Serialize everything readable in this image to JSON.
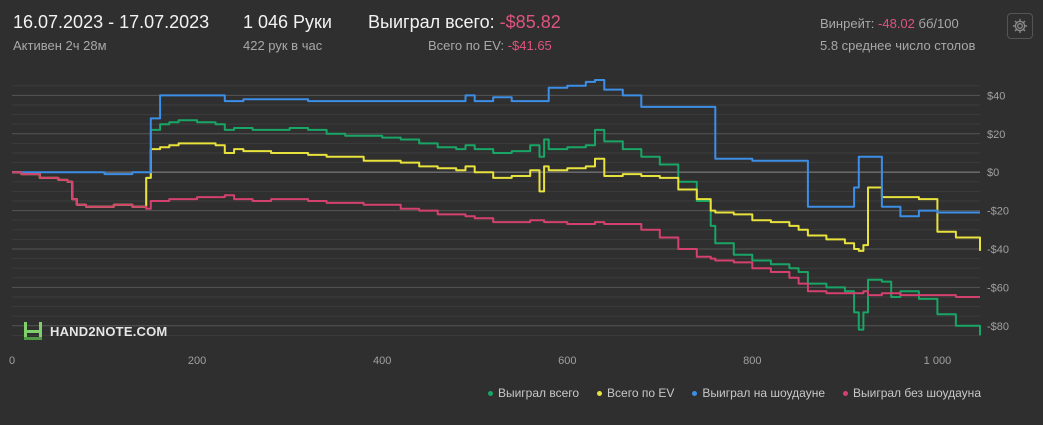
{
  "header": {
    "date_range": "16.07.2023 - 17.07.2023",
    "active_time": "Активен 2ч 28м",
    "hands": "1 046 Руки",
    "hands_per_hour": "422 рук в час",
    "won_total_label": "Выиграл всего:",
    "won_total_value": "-$85.82",
    "ev_total_label": "Всего по EV:",
    "ev_total_value": "-$41.65",
    "winrate_label": "Винрейт:",
    "winrate_value": "-48.02",
    "winrate_unit": "бб/100",
    "avg_tables": "5.8 среднее число столов"
  },
  "logo": {
    "text": "HAND2NOTE.COM"
  },
  "colors": {
    "won_total": "#18a565",
    "ev": "#e8e23d",
    "showdown": "#3d8ee6",
    "non_showdown": "#d4416e",
    "negative": "#e0537f",
    "background": "#2f2f2f"
  },
  "chart_data": {
    "type": "line",
    "xlim": [
      0,
      1046
    ],
    "ylim": [
      -90,
      48
    ],
    "x_ticks": [
      0,
      200,
      400,
      600,
      800,
      1000
    ],
    "x_tick_labels": [
      "0",
      "200",
      "400",
      "600",
      "800",
      "1 000"
    ],
    "y_ticks": [
      40,
      20,
      0,
      -20,
      -40,
      -60,
      -80
    ],
    "y_tick_labels": [
      "$40",
      "$20",
      "$0",
      "-$20",
      "-$40",
      "-$60",
      "-$80"
    ],
    "grid": true,
    "legend_position": "bottom-right",
    "series": [
      {
        "name": "Выиграл всего",
        "color": "#18a565",
        "x": [
          0,
          10,
          30,
          50,
          60,
          65,
          70,
          80,
          100,
          110,
          120,
          130,
          140,
          145,
          150,
          160,
          170,
          180,
          200,
          220,
          230,
          240,
          250,
          260,
          280,
          300,
          320,
          340,
          360,
          380,
          400,
          420,
          440,
          460,
          480,
          490,
          500,
          520,
          540,
          560,
          570,
          575,
          580,
          600,
          620,
          630,
          640,
          660,
          680,
          700,
          720,
          740,
          755,
          760,
          780,
          800,
          820,
          840,
          850,
          860,
          880,
          900,
          910,
          915,
          920,
          925,
          940,
          950,
          960,
          980,
          1000,
          1020,
          1046
        ],
        "y": [
          0,
          -1,
          -3,
          -4,
          -5,
          -14,
          -17,
          -18,
          -18,
          -17,
          -17,
          -18,
          -18,
          -3,
          22,
          25,
          26,
          27,
          26,
          25,
          22,
          23,
          23,
          22,
          22,
          23,
          22,
          20,
          19,
          19,
          18,
          17,
          15,
          13,
          12,
          14,
          12,
          10,
          11,
          14,
          8,
          17,
          12,
          13,
          14,
          22,
          16,
          12,
          8,
          4,
          -5,
          -15,
          -28,
          -37,
          -43,
          -46,
          -48,
          -50,
          -52,
          -58,
          -60,
          -62,
          -73,
          -82,
          -73,
          -56,
          -57,
          -65,
          -62,
          -66,
          -74,
          -80,
          -85
        ]
      },
      {
        "name": "Всего по EV",
        "color": "#e8e23d",
        "x": [
          0,
          10,
          30,
          50,
          60,
          65,
          70,
          80,
          100,
          110,
          120,
          130,
          140,
          145,
          150,
          160,
          170,
          180,
          200,
          220,
          230,
          240,
          250,
          260,
          280,
          300,
          320,
          340,
          360,
          380,
          400,
          420,
          440,
          460,
          480,
          490,
          500,
          520,
          540,
          560,
          570,
          575,
          580,
          600,
          620,
          630,
          640,
          660,
          680,
          700,
          720,
          740,
          755,
          760,
          780,
          800,
          820,
          840,
          850,
          860,
          880,
          900,
          910,
          915,
          920,
          925,
          940,
          950,
          960,
          980,
          1000,
          1020,
          1046
        ],
        "y": [
          0,
          -1,
          -3,
          -4,
          -5,
          -14,
          -17,
          -18,
          -18,
          -17,
          -17,
          -18,
          -18,
          -3,
          12,
          13,
          14,
          15,
          15,
          14,
          10,
          12,
          11,
          11,
          10,
          10,
          9,
          8,
          8,
          6,
          6,
          5,
          3,
          2,
          1,
          3,
          0,
          -3,
          -2,
          1,
          -10,
          3,
          1,
          2,
          3,
          7,
          -2,
          -1,
          -2,
          -3,
          -9,
          -14,
          -20,
          -21,
          -22,
          -25,
          -26,
          -28,
          -30,
          -33,
          -35,
          -37,
          -40,
          -41,
          -38,
          -8,
          -13,
          -13,
          -13,
          -14,
          -31,
          -34,
          -41
        ]
      },
      {
        "name": "Выиграл на шоудауне",
        "color": "#3d8ee6",
        "x": [
          0,
          10,
          30,
          50,
          60,
          65,
          70,
          80,
          100,
          110,
          120,
          130,
          140,
          145,
          150,
          160,
          170,
          180,
          200,
          220,
          230,
          240,
          250,
          260,
          280,
          300,
          320,
          340,
          360,
          380,
          400,
          420,
          440,
          460,
          480,
          490,
          500,
          520,
          540,
          560,
          570,
          575,
          580,
          600,
          620,
          630,
          640,
          660,
          680,
          700,
          720,
          740,
          755,
          760,
          780,
          800,
          820,
          840,
          850,
          860,
          880,
          900,
          910,
          915,
          920,
          925,
          940,
          950,
          960,
          980,
          1000,
          1020,
          1046
        ],
        "y": [
          0,
          0,
          0,
          0,
          0,
          0,
          0,
          0,
          -1,
          -1,
          -1,
          0,
          0,
          0,
          28,
          40,
          40,
          40,
          40,
          40,
          37,
          37,
          38,
          38,
          38,
          38,
          37,
          37,
          37,
          37,
          37,
          37,
          37,
          37,
          37,
          40,
          37,
          39,
          37,
          37,
          37,
          37,
          44,
          45,
          47,
          48,
          43,
          40,
          34,
          34,
          34,
          34,
          34,
          7,
          7,
          6,
          6,
          6,
          6,
          -18,
          -18,
          -18,
          -8,
          8,
          8,
          8,
          -18,
          -18,
          -23,
          -20,
          -21,
          -21,
          -21
        ]
      },
      {
        "name": "Выиграл без шоудауна",
        "color": "#d4416e",
        "x": [
          0,
          10,
          30,
          50,
          60,
          65,
          70,
          80,
          100,
          110,
          120,
          130,
          140,
          145,
          150,
          160,
          170,
          180,
          200,
          220,
          230,
          240,
          250,
          260,
          280,
          300,
          320,
          340,
          360,
          380,
          400,
          420,
          440,
          460,
          480,
          490,
          500,
          520,
          540,
          560,
          570,
          575,
          580,
          600,
          620,
          630,
          640,
          660,
          680,
          700,
          720,
          740,
          755,
          760,
          780,
          800,
          820,
          840,
          850,
          860,
          880,
          900,
          910,
          915,
          920,
          925,
          940,
          950,
          960,
          980,
          1000,
          1020,
          1046
        ],
        "y": [
          0,
          -1,
          -3,
          -4,
          -5,
          -14,
          -17,
          -18,
          -18,
          -17,
          -17,
          -18,
          -18,
          -19,
          -15,
          -15,
          -14,
          -14,
          -13,
          -13,
          -12,
          -14,
          -14,
          -15,
          -14,
          -14,
          -15,
          -16,
          -16,
          -17,
          -17,
          -19,
          -20,
          -22,
          -22,
          -23,
          -24,
          -26,
          -26,
          -25,
          -25,
          -26,
          -26,
          -27,
          -27,
          -26,
          -27,
          -27,
          -30,
          -34,
          -40,
          -44,
          -45,
          -46,
          -47,
          -50,
          -52,
          -55,
          -58,
          -62,
          -63,
          -63,
          -63,
          -63,
          -62,
          -64,
          -63,
          -63,
          -64,
          -64,
          -64,
          -65,
          -65
        ]
      }
    ]
  }
}
